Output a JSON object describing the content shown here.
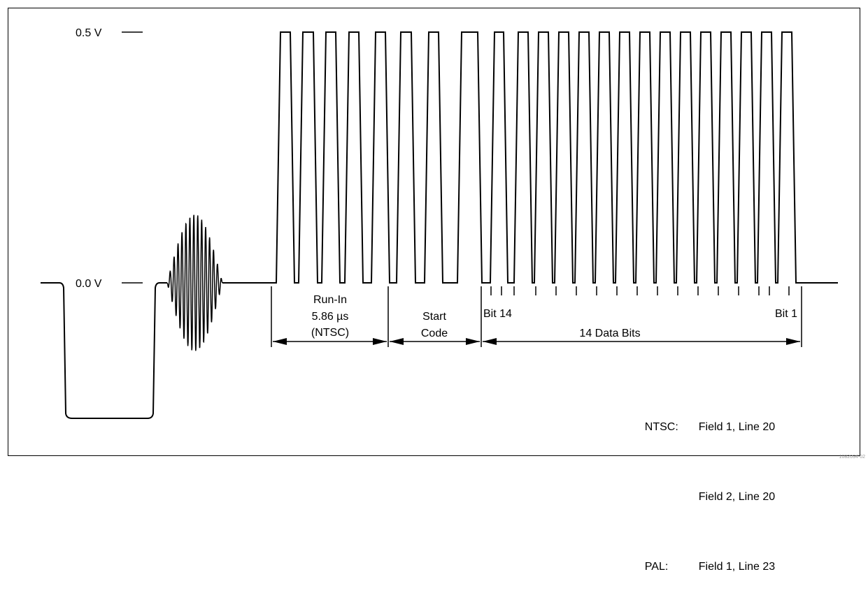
{
  "levels": {
    "high_label": "0.5 V",
    "low_label": "0.0 V"
  },
  "segments": {
    "run_in": {
      "label_line1": "Run-In",
      "label_line2": "5.86 µs",
      "label_line3": "(NTSC)"
    },
    "start_code": {
      "label_line1": "Start",
      "label_line2": "Code"
    },
    "data_bits": {
      "label": "14 Data Bits",
      "first_bit_label": "Bit 14",
      "last_bit_label": "Bit 1"
    }
  },
  "legend": {
    "rows": [
      {
        "system": "NTSC:",
        "field_line": "Field 1, Line 20"
      },
      {
        "system": "",
        "field_line": "Field 2, Line 20"
      },
      {
        "system": "PAL:",
        "field_line": "Field 1, Line 23"
      }
    ]
  },
  "figure_id": "1082094-02",
  "colors": {
    "line": "#000000",
    "background": "#ffffff"
  }
}
